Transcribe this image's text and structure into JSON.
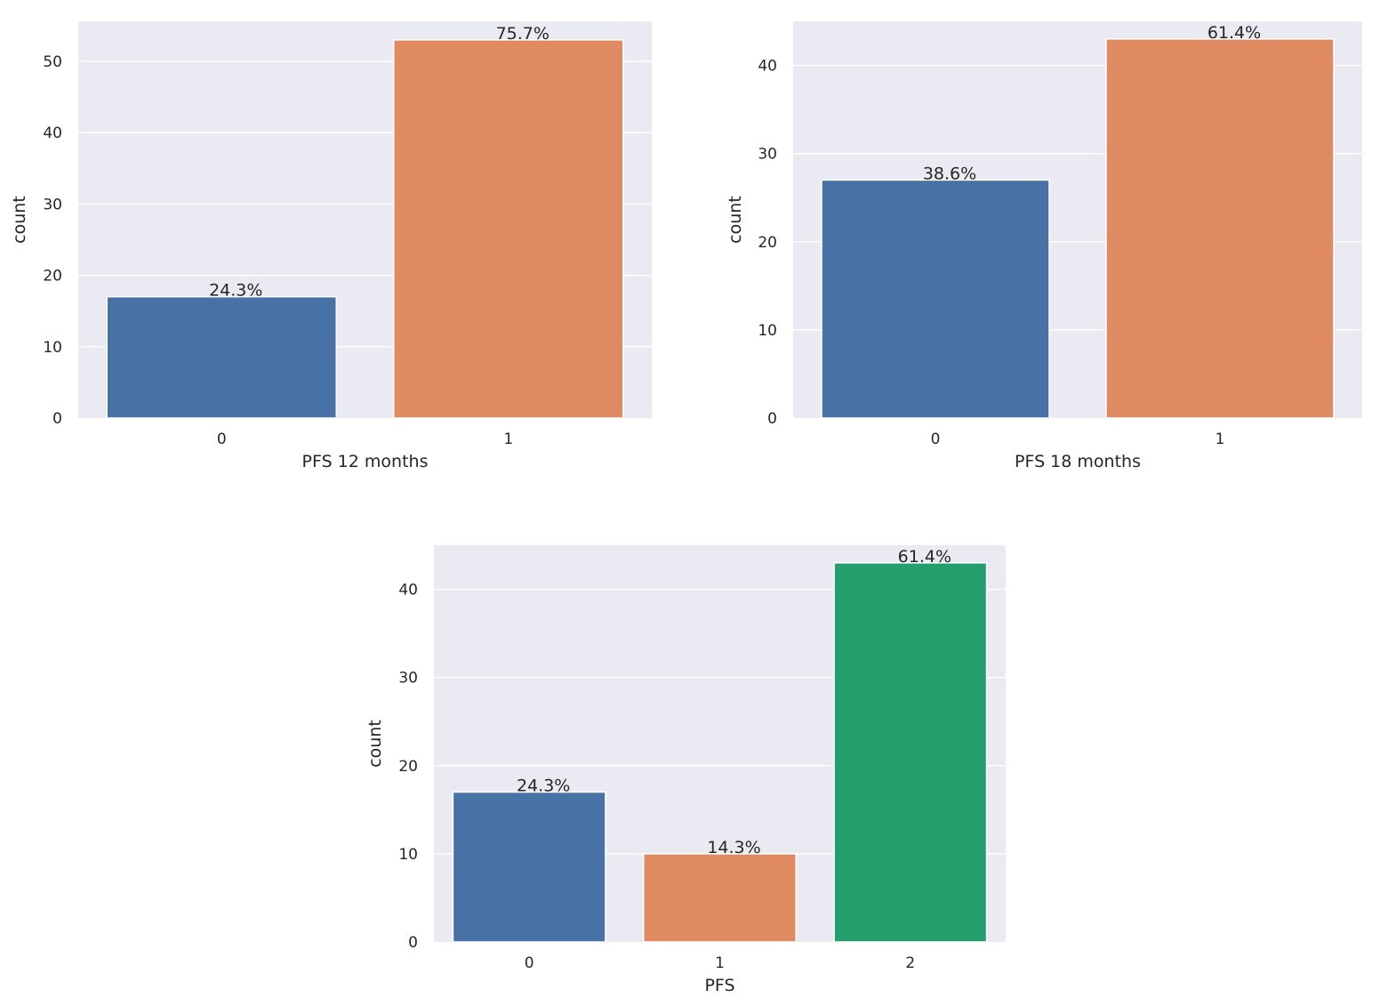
{
  "chart_data": [
    {
      "type": "bar",
      "categories": [
        "0",
        "1"
      ],
      "values": [
        17,
        53
      ],
      "labels": [
        "24.3%",
        "75.7%"
      ],
      "colors": [
        "#4872a6",
        "#e08a61"
      ],
      "xlabel": "PFS 12 months",
      "ylabel": "count",
      "ylim": [
        0,
        55.6
      ],
      "yticks": [
        "0",
        "10",
        "20",
        "30",
        "40",
        "50"
      ],
      "grid": true
    },
    {
      "type": "bar",
      "categories": [
        "0",
        "1"
      ],
      "values": [
        27,
        43
      ],
      "labels": [
        "38.6%",
        "61.4%"
      ],
      "colors": [
        "#4872a6",
        "#e08a61"
      ],
      "xlabel": "PFS 18 months",
      "ylabel": "count",
      "ylim": [
        0,
        45
      ],
      "yticks": [
        "0",
        "10",
        "20",
        "30",
        "40"
      ],
      "grid": true
    },
    {
      "type": "bar",
      "categories": [
        "0",
        "1",
        "2"
      ],
      "values": [
        17,
        10,
        43
      ],
      "labels": [
        "24.3%",
        "14.3%",
        "61.4%"
      ],
      "colors": [
        "#4872a6",
        "#e08a61",
        "#259e6e"
      ],
      "xlabel": "PFS",
      "ylabel": "count",
      "ylim": [
        0,
        45
      ],
      "yticks": [
        "0",
        "10",
        "20",
        "30",
        "40"
      ],
      "grid": true
    }
  ],
  "style": {
    "background": "#eaeaf2",
    "grid": "#ffffff"
  }
}
